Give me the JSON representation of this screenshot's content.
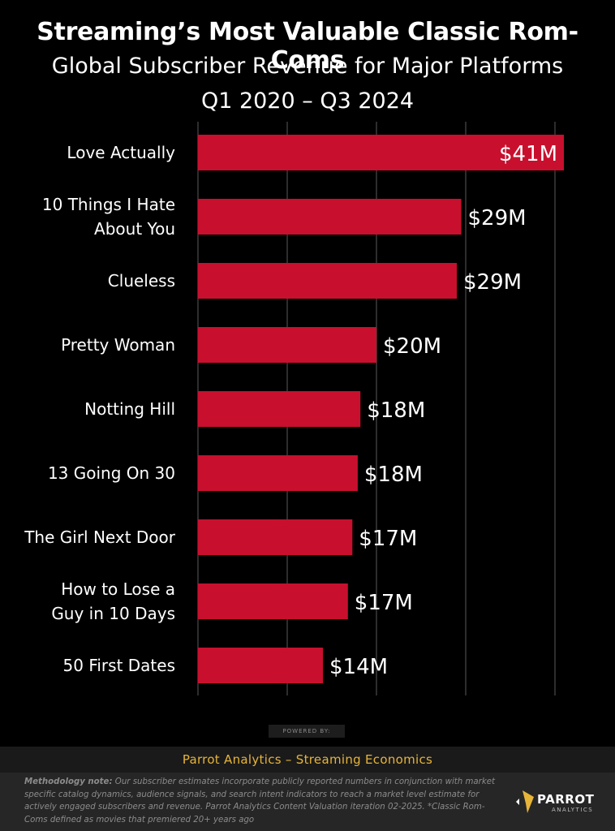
{
  "header": {
    "title": "Streaming’s Most Valuable Classic Rom-Coms",
    "subtitle": "Global Subscriber Revenue for Major Platforms",
    "period": "Q1 2020 – Q3 2024"
  },
  "chart_data": {
    "type": "bar",
    "orientation": "horizontal",
    "categories": [
      [
        "Love Actually"
      ],
      [
        "10 Things I Hate",
        "About You"
      ],
      [
        "Clueless"
      ],
      [
        "Pretty Woman"
      ],
      [
        "Notting Hill"
      ],
      [
        "13 Going On 30"
      ],
      [
        "The Girl Next Door"
      ],
      [
        "How to Lose a",
        "Guy in 10 Days"
      ],
      [
        "50 First Dates"
      ]
    ],
    "values": [
      41,
      29.5,
      29,
      20,
      18.2,
      17.9,
      17.3,
      16.8,
      14
    ],
    "data_labels": [
      "$41M",
      "$29M",
      "$29M",
      "$20M",
      "$18M",
      "$18M",
      "$17M",
      "$17M",
      "$14M"
    ],
    "xlim": [
      0,
      45
    ],
    "grid": true,
    "bar_color": "#c8102e",
    "title": "Streaming’s Most Valuable Classic Rom-Coms",
    "xlabel": "",
    "ylabel": ""
  },
  "footer": {
    "powered_by": "POWERED BY:",
    "brand_line": "Parrot Analytics – Streaming Economics",
    "method_label": "Methodology note:",
    "method_text": "Our subscriber estimates incorporate publicly reported numbers in conjunction with market specific catalog dynamics, audience signals, and search intent indicators to reach a market level estimate for actively engaged subscribers and revenue.  Parrot Analytics Content Valuation iteration 02-2025. *Classic Rom-Coms defined as movies that premiered 20+ years ago",
    "logo_name": "PARROT",
    "logo_sub": "ANALYTICS",
    "accent_color": "#e7b43a"
  }
}
